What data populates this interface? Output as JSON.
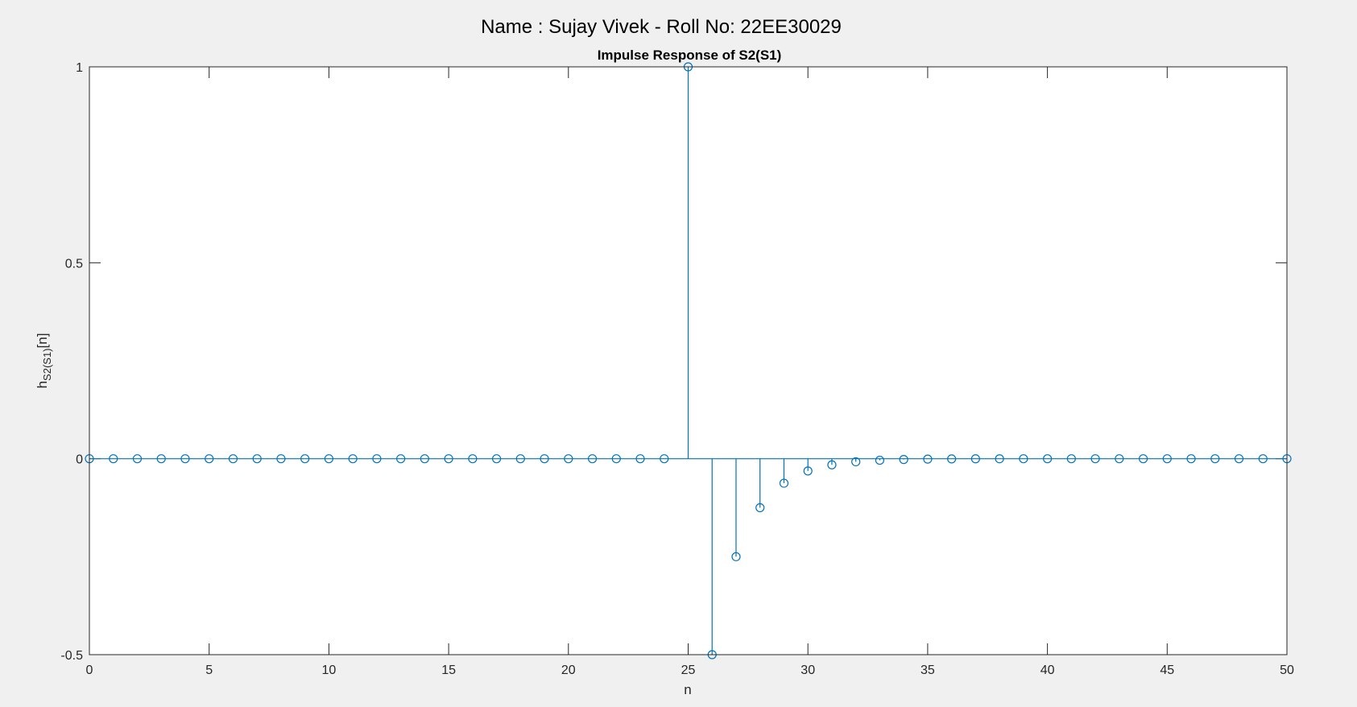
{
  "figure": {
    "suptitle": "Name : Sujay Vivek - Roll No: 22EE30029",
    "background_color": "#f0f0f0",
    "axes_color": "#ffffff",
    "stem_color": "#0072bd"
  },
  "chart_data": {
    "type": "stem",
    "title": "Impulse Response of S2(S1)",
    "xlabel": "n",
    "ylabel": {
      "base": "h",
      "subscript": "S2(S1)",
      "suffix": "[n]"
    },
    "xlim": [
      0,
      50
    ],
    "ylim": [
      -0.5,
      1
    ],
    "xticks": [
      0,
      5,
      10,
      15,
      20,
      25,
      30,
      35,
      40,
      45,
      50
    ],
    "yticks": [
      -0.5,
      0,
      0.5,
      1
    ],
    "ytick_labels": [
      "-0.5",
      "0",
      "0.5",
      "1"
    ],
    "grid": false,
    "series": [
      {
        "marker": "circle",
        "x": [
          0,
          1,
          2,
          3,
          4,
          5,
          6,
          7,
          8,
          9,
          10,
          11,
          12,
          13,
          14,
          15,
          16,
          17,
          18,
          19,
          20,
          21,
          22,
          23,
          24,
          25,
          26,
          27,
          28,
          29,
          30,
          31,
          32,
          33,
          34,
          35,
          36,
          37,
          38,
          39,
          40,
          41,
          42,
          43,
          44,
          45,
          46,
          47,
          48,
          49,
          50
        ],
        "y": [
          0,
          0,
          0,
          0,
          0,
          0,
          0,
          0,
          0,
          0,
          0,
          0,
          0,
          0,
          0,
          0,
          0,
          0,
          0,
          0,
          0,
          0,
          0,
          0,
          0,
          1,
          -0.5,
          -0.25,
          -0.125,
          -0.0625,
          -0.03125,
          -0.015625,
          -0.0078125,
          -0.00390625,
          -0.001953125,
          -0.0009765625,
          -0.00048828125,
          -0.000244140625,
          -0.0001220703125,
          -6.103515625e-05,
          -3.0517578125e-05,
          0,
          0,
          0,
          0,
          0,
          0,
          0,
          0,
          0,
          0
        ]
      }
    ]
  }
}
